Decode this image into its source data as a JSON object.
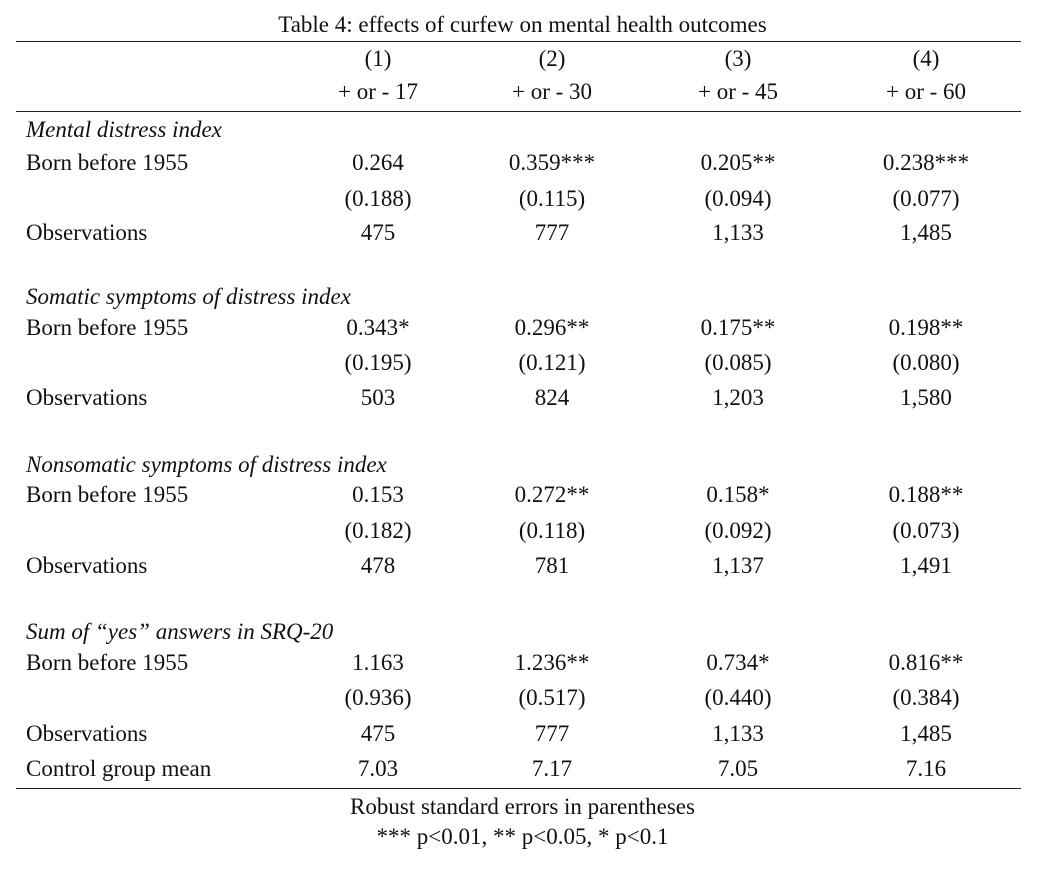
{
  "table": {
    "caption": "Table 4: effects of curfew on mental health outcomes",
    "columns": [
      {
        "number": "(1)",
        "window": "+ or - 17"
      },
      {
        "number": "(2)",
        "window": "+ or - 30"
      },
      {
        "number": "(3)",
        "window": "+ or - 45"
      },
      {
        "number": "(4)",
        "window": "+ or - 60"
      }
    ],
    "sections": [
      {
        "title": "Mental distress index",
        "coef_label": "Born before 1955",
        "coefs": [
          "0.264",
          "0.359***",
          "0.205**",
          "0.238***"
        ],
        "ses": [
          "(0.188)",
          "(0.115)",
          "(0.094)",
          "(0.077)"
        ],
        "obs_label": "Observations",
        "obs": [
          "475",
          "777",
          "1,133",
          "1,485"
        ]
      },
      {
        "title": "Somatic symptoms of distress index",
        "coef_label": "Born before 1955",
        "coefs": [
          "0.343*",
          "0.296**",
          "0.175**",
          "0.198**"
        ],
        "ses": [
          "(0.195)",
          "(0.121)",
          "(0.085)",
          "(0.080)"
        ],
        "obs_label": "Observations",
        "obs": [
          "503",
          "824",
          "1,203",
          "1,580"
        ]
      },
      {
        "title": "Nonsomatic symptoms of distress index",
        "coef_label": "Born before 1955",
        "coefs": [
          "0.153",
          "0.272**",
          "0.158*",
          "0.188**"
        ],
        "ses": [
          "(0.182)",
          "(0.118)",
          "(0.092)",
          "(0.073)"
        ],
        "obs_label": "Observations",
        "obs": [
          "478",
          "781",
          "1,137",
          "1,491"
        ]
      },
      {
        "title": "Sum of “yes” answers in SRQ-20",
        "coef_label": "Born before 1955",
        "coefs": [
          "1.163",
          "1.236**",
          "0.734*",
          "0.816**"
        ],
        "ses": [
          "(0.936)",
          "(0.517)",
          "(0.440)",
          "(0.384)"
        ],
        "obs_label": "Observations",
        "obs": [
          "475",
          "777",
          "1,133",
          "1,485"
        ]
      }
    ],
    "control_mean": {
      "label": "Control group mean",
      "values": [
        "7.03",
        "7.17",
        "7.05",
        "7.16"
      ]
    },
    "notes": {
      "line1": "Robust standard errors in parentheses",
      "line2": "*** p<0.01, ** p<0.05, * p<0.1"
    }
  }
}
